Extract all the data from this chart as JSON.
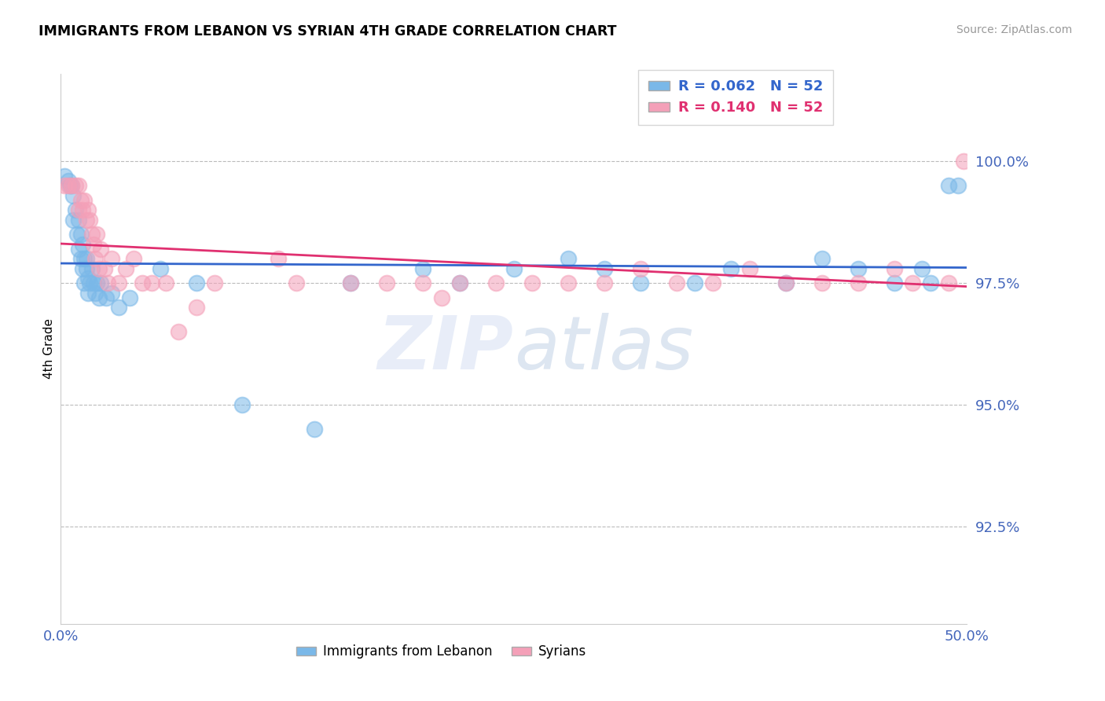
{
  "title": "IMMIGRANTS FROM LEBANON VS SYRIAN 4TH GRADE CORRELATION CHART",
  "source": "Source: ZipAtlas.com",
  "ylabel": "4th Grade",
  "xlim": [
    0.0,
    50.0
  ],
  "ylim": [
    90.5,
    101.8
  ],
  "yticks": [
    100.0,
    97.5,
    95.0,
    92.5
  ],
  "ytick_labels": [
    "100.0%",
    "97.5%",
    "95.0%",
    "92.5%"
  ],
  "legend_blue_label": "Immigrants from Lebanon",
  "legend_pink_label": "Syrians",
  "r_blue": 0.062,
  "n_blue": 52,
  "r_pink": 0.14,
  "n_pink": 52,
  "blue_color": "#7ab8e8",
  "pink_color": "#f4a0b8",
  "blue_line_color": "#3366cc",
  "pink_line_color": "#e03070",
  "tick_color": "#4466bb",
  "watermark_zip": "ZIP",
  "watermark_atlas": "atlas",
  "blue_x": [
    0.2,
    0.4,
    0.5,
    0.6,
    0.7,
    0.7,
    0.8,
    0.9,
    1.0,
    1.0,
    1.1,
    1.1,
    1.2,
    1.2,
    1.3,
    1.3,
    1.4,
    1.4,
    1.5,
    1.5,
    1.6,
    1.7,
    1.8,
    1.9,
    2.0,
    2.1,
    2.2,
    2.5,
    2.8,
    3.2,
    3.8,
    5.5,
    7.5,
    10.0,
    14.0,
    16.0,
    20.0,
    22.0,
    25.0,
    28.0,
    30.0,
    32.0,
    35.0,
    37.0,
    40.0,
    42.0,
    44.0,
    46.0,
    47.5,
    48.0,
    49.0,
    49.5
  ],
  "blue_y": [
    99.7,
    99.6,
    99.5,
    99.5,
    99.3,
    98.8,
    99.0,
    98.5,
    98.8,
    98.2,
    98.5,
    98.0,
    98.3,
    97.8,
    98.0,
    97.5,
    98.0,
    97.8,
    97.6,
    97.3,
    97.5,
    97.8,
    97.5,
    97.3,
    97.5,
    97.2,
    97.5,
    97.2,
    97.3,
    97.0,
    97.2,
    97.8,
    97.5,
    95.0,
    94.5,
    97.5,
    97.8,
    97.5,
    97.8,
    98.0,
    97.8,
    97.5,
    97.5,
    97.8,
    97.5,
    98.0,
    97.8,
    97.5,
    97.8,
    97.5,
    99.5,
    99.5
  ],
  "pink_x": [
    0.2,
    0.4,
    0.6,
    0.8,
    1.0,
    1.0,
    1.1,
    1.2,
    1.3,
    1.4,
    1.5,
    1.6,
    1.7,
    1.8,
    1.9,
    2.0,
    2.1,
    2.2,
    2.4,
    2.6,
    2.8,
    3.2,
    3.6,
    4.0,
    4.5,
    5.0,
    5.8,
    6.5,
    7.5,
    8.5,
    12.0,
    13.0,
    16.0,
    18.0,
    20.0,
    21.0,
    22.0,
    24.0,
    26.0,
    28.0,
    30.0,
    32.0,
    34.0,
    36.0,
    38.0,
    40.0,
    42.0,
    44.0,
    46.0,
    47.0,
    49.0,
    49.8
  ],
  "pink_y": [
    99.5,
    99.5,
    99.5,
    99.5,
    99.5,
    99.0,
    99.2,
    99.0,
    99.2,
    98.8,
    99.0,
    98.8,
    98.5,
    98.3,
    98.0,
    98.5,
    97.8,
    98.2,
    97.8,
    97.5,
    98.0,
    97.5,
    97.8,
    98.0,
    97.5,
    97.5,
    97.5,
    96.5,
    97.0,
    97.5,
    98.0,
    97.5,
    97.5,
    97.5,
    97.5,
    97.2,
    97.5,
    97.5,
    97.5,
    97.5,
    97.5,
    97.8,
    97.5,
    97.5,
    97.8,
    97.5,
    97.5,
    97.5,
    97.8,
    97.5,
    97.5,
    100.0
  ]
}
